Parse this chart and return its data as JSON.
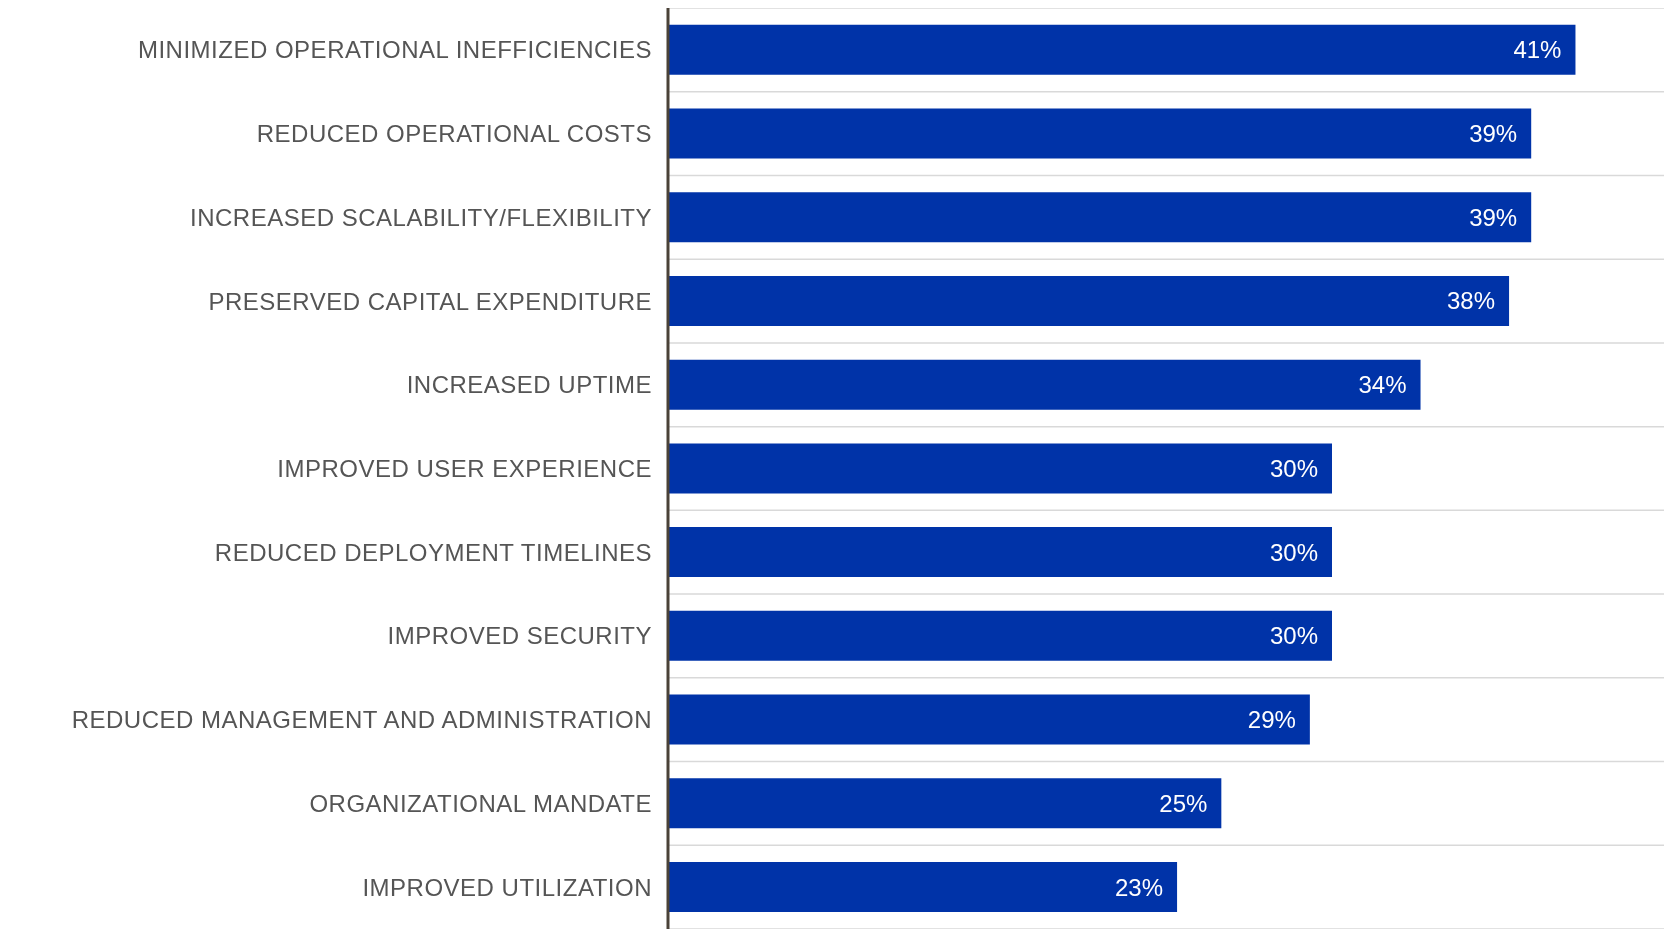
{
  "chart_data": {
    "type": "bar",
    "orientation": "horizontal",
    "categories": [
      "MINIMIZED OPERATIONAL INEFFICIENCIES",
      "REDUCED OPERATIONAL COSTS",
      "INCREASED SCALABILITY/FLEXIBILITY",
      "PRESERVED CAPITAL EXPENDITURE",
      "INCREASED UPTIME",
      "IMPROVED USER EXPERIENCE",
      "REDUCED DEPLOYMENT TIMELINES",
      "IMPROVED SECURITY",
      "REDUCED MANAGEMENT AND ADMINISTRATION",
      "ORGANIZATIONAL MANDATE",
      "IMPROVED UTILIZATION"
    ],
    "values": [
      41,
      39,
      39,
      38,
      34,
      30,
      30,
      30,
      29,
      25,
      23
    ],
    "value_labels": [
      "41%",
      "39%",
      "39%",
      "38%",
      "34%",
      "30%",
      "30%",
      "30%",
      "29%",
      "25%",
      "23%"
    ],
    "color": "#0033a8",
    "xlim": [
      0,
      45
    ],
    "grid": "y",
    "tick_labels": "y"
  }
}
